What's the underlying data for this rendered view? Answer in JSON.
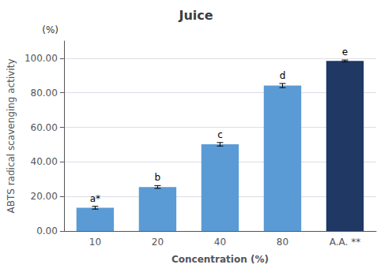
{
  "chart_data": {
    "type": "bar",
    "title": "Juice",
    "xlabel": "Concentration (%)",
    "ylabel": "ABTS radical scavenging activity",
    "annotations": [
      "(%)"
    ],
    "categories": [
      "10",
      "20",
      "40",
      "80",
      "A.A. **"
    ],
    "values": [
      13.5,
      25.5,
      50.2,
      84.2,
      98.5
    ],
    "errors": [
      0.8,
      0.8,
      1.0,
      1.2,
      0.5
    ],
    "letter_labels": [
      "a*",
      "b",
      "c",
      "d",
      "e"
    ],
    "colors": [
      "#5b9bd5",
      "#5b9bd5",
      "#5b9bd5",
      "#5b9bd5",
      "#1f3864"
    ],
    "ylim": [
      0,
      110
    ],
    "yticks": [
      {
        "value": 0,
        "label": "0.00"
      },
      {
        "value": 20,
        "label": "20.00"
      },
      {
        "value": 40,
        "label": "40.00"
      },
      {
        "value": 60,
        "label": "60.00"
      },
      {
        "value": 80,
        "label": "80.00"
      },
      {
        "value": 100,
        "label": "100.00"
      }
    ],
    "grid": true
  }
}
